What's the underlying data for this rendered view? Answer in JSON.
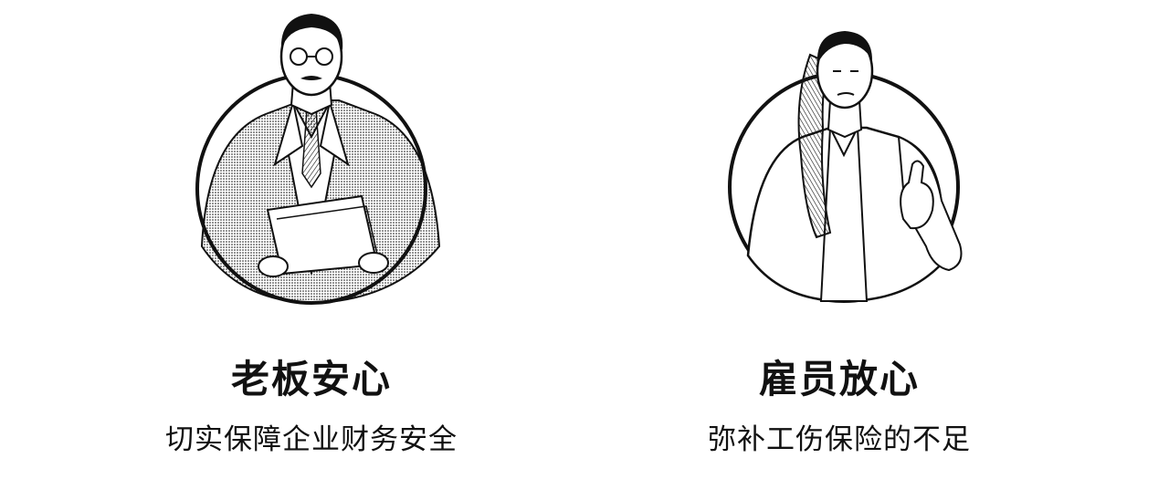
{
  "features": [
    {
      "title": "老板安心",
      "subtitle": "切实保障企业财务安全",
      "illustration": "businessman-with-documents-icon"
    },
    {
      "title": "雇员放心",
      "subtitle": "弥补工伤保险的不足",
      "illustration": "employee-thumbs-up-icon"
    }
  ],
  "colors": {
    "ink": "#111111",
    "background": "#ffffff"
  }
}
